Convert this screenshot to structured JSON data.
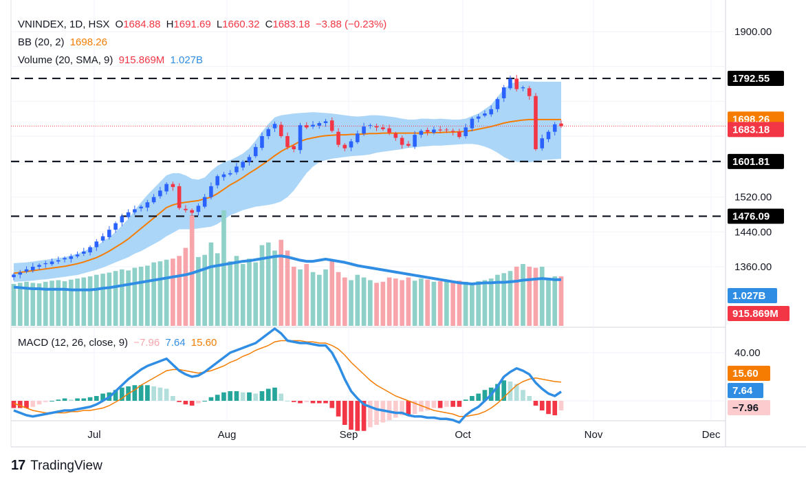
{
  "legend": {
    "symbol": "VNINDEX, 1D, HSX",
    "o_label": "O",
    "open": "1684.88",
    "h_label": "H",
    "high": "1691.69",
    "l_label": "L",
    "low": "1660.32",
    "c_label": "C",
    "close": "1683.18",
    "change": "−3.88 (−0.23%)",
    "bb_label": "BB (20, 2)",
    "bb_value": "1698.26",
    "vol_label": "Volume (20, SMA, 9)",
    "vol_value": "915.869M",
    "vol_sma": "1.027B",
    "macd_label": "MACD (12, 26, close, 9)",
    "macd_hist": "−7.96",
    "macd_line": "7.64",
    "macd_signal": "15.60"
  },
  "brand": "TradingView",
  "colors": {
    "up": "#2962ff",
    "down": "#f23645",
    "bb_fill": "#90c8f6",
    "bb_basis": "#f57c00",
    "vol_up": "#8fd1c9",
    "vol_down": "#f7a5ab",
    "vol_sma": "#2f8de4",
    "macd_line": "#2f8de4",
    "signal_line": "#f57c00",
    "hist_up_strong": "#26a69a",
    "hist_up_weak": "#b2dfdb",
    "hist_down_strong": "#f23645",
    "hist_down_weak": "#fccbcd"
  },
  "chart_data": {
    "type": "candlestick",
    "x_labels": [
      "Jul",
      "Aug",
      "Sep",
      "Oct",
      "Nov",
      "Dec"
    ],
    "price_axis": {
      "ticks": [
        "1900.00",
        "1520.00",
        "1440.00",
        "1360.00"
      ],
      "range": [
        1318,
        1940
      ]
    },
    "levels": [
      {
        "value": 1792.55,
        "label": "1792.55"
      },
      {
        "value": 1601.81,
        "label": "1601.81"
      },
      {
        "value": 1476.09,
        "label": "1476.09"
      }
    ],
    "price_badges": [
      {
        "label": "1698.26",
        "value": 1698.26,
        "role": "bb"
      },
      {
        "label": "1683.18",
        "value": 1683.18,
        "role": "close"
      }
    ],
    "volume_badges": [
      "1.027B",
      "915.869M"
    ],
    "macd_axis": {
      "ticks": [
        "40.00"
      ],
      "range": [
        -40,
        70
      ]
    },
    "macd_badges": [
      {
        "label": "15.60",
        "value": 15.6,
        "role": "signal"
      },
      {
        "label": "7.64",
        "value": 7.64,
        "role": "macd"
      },
      {
        "label": "−7.96",
        "value": -7.96,
        "role": "hist"
      }
    ],
    "close_series": [
      1342,
      1347,
      1354,
      1360,
      1364,
      1368,
      1372,
      1375,
      1380,
      1384,
      1388,
      1395,
      1405,
      1418,
      1430,
      1445,
      1460,
      1476,
      1485,
      1492,
      1498,
      1508,
      1520,
      1535,
      1550,
      1543,
      1495,
      1490,
      1484,
      1500,
      1520,
      1545,
      1568,
      1572,
      1575,
      1590,
      1601,
      1612,
      1635,
      1660,
      1676,
      1688,
      1660,
      1635,
      1630,
      1685,
      1680,
      1686,
      1690,
      1694,
      1672,
      1640,
      1632,
      1648,
      1666,
      1682,
      1685,
      1680,
      1676,
      1668,
      1656,
      1640,
      1638,
      1663,
      1672,
      1670,
      1675,
      1673,
      1674,
      1670,
      1658,
      1680,
      1700,
      1705,
      1712,
      1722,
      1745,
      1772,
      1792,
      1768,
      1772,
      1752,
      1630,
      1655,
      1670,
      1687,
      1683
    ],
    "bb_upper": [
      1368,
      1369,
      1370,
      1372,
      1374,
      1376,
      1378,
      1380,
      1382,
      1386,
      1390,
      1396,
      1402,
      1408,
      1418,
      1428,
      1440,
      1455,
      1470,
      1490,
      1508,
      1525,
      1540,
      1555,
      1570,
      1575,
      1575,
      1570,
      1562,
      1560,
      1565,
      1580,
      1592,
      1600,
      1605,
      1612,
      1620,
      1632,
      1650,
      1670,
      1688,
      1703,
      1708,
      1710,
      1712,
      1713,
      1714,
      1715,
      1714,
      1713,
      1712,
      1710,
      1708,
      1706,
      1705,
      1706,
      1708,
      1708,
      1707,
      1705,
      1703,
      1700,
      1698,
      1698,
      1700,
      1700,
      1699,
      1700,
      1699,
      1698,
      1698,
      1700,
      1706,
      1712,
      1722,
      1732,
      1750,
      1768,
      1780,
      1785,
      1786,
      1786,
      1785,
      1785,
      1785,
      1785,
      1785
    ],
    "bb_lower": [
      1325,
      1326,
      1327,
      1328,
      1330,
      1331,
      1333,
      1335,
      1337,
      1339,
      1341,
      1345,
      1349,
      1353,
      1358,
      1364,
      1370,
      1376,
      1382,
      1390,
      1396,
      1404,
      1412,
      1420,
      1430,
      1438,
      1446,
      1446,
      1446,
      1448,
      1450,
      1452,
      1458,
      1468,
      1478,
      1484,
      1490,
      1494,
      1498,
      1500,
      1502,
      1505,
      1510,
      1520,
      1535,
      1555,
      1575,
      1590,
      1600,
      1605,
      1608,
      1610,
      1612,
      1614,
      1615,
      1616,
      1618,
      1622,
      1624,
      1626,
      1628,
      1630,
      1633,
      1634,
      1636,
      1637,
      1638,
      1638,
      1639,
      1640,
      1641,
      1642,
      1642,
      1640,
      1636,
      1630,
      1622,
      1612,
      1605,
      1601,
      1600,
      1600,
      1602,
      1605,
      1606,
      1607,
      1608
    ],
    "bb_basis": [
      1345,
      1347,
      1349,
      1351,
      1353,
      1355,
      1357,
      1359,
      1361,
      1364,
      1367,
      1371,
      1376,
      1381,
      1388,
      1396,
      1405,
      1414,
      1424,
      1436,
      1448,
      1460,
      1472,
      1484,
      1496,
      1502,
      1506,
      1508,
      1510,
      1512,
      1516,
      1520,
      1528,
      1538,
      1548,
      1556,
      1565,
      1575,
      1584,
      1594,
      1604,
      1615,
      1625,
      1633,
      1640,
      1648,
      1653,
      1656,
      1659,
      1661,
      1662,
      1663,
      1663,
      1664,
      1664,
      1665,
      1666,
      1666,
      1667,
      1667,
      1667,
      1667,
      1667,
      1667,
      1667,
      1668,
      1668,
      1668,
      1669,
      1669,
      1670,
      1671,
      1673,
      1676,
      1679,
      1682,
      1686,
      1690,
      1693,
      1695,
      1697,
      1698,
      1698,
      1698,
      1698,
      1698,
      1698
    ],
    "volume_range": [
      0,
      2.3
    ],
    "volume": [
      0.78,
      0.8,
      0.82,
      0.8,
      0.79,
      0.82,
      0.84,
      0.85,
      0.83,
      0.86,
      0.88,
      0.9,
      0.92,
      0.95,
      0.97,
      0.99,
      1.02,
      1.05,
      1.03,
      1.08,
      1.1,
      1.12,
      1.18,
      1.2,
      1.23,
      1.25,
      1.3,
      1.45,
      2.05,
      1.28,
      1.32,
      1.55,
      1.35,
      2.15,
      1.2,
      1.3,
      1.15,
      1.25,
      1.18,
      1.5,
      1.55,
      1.4,
      1.6,
      1.4,
      1.1,
      1.05,
      1.15,
      1.0,
      0.95,
      1.05,
      1.2,
      1.0,
      0.9,
      0.85,
      0.95,
      0.9,
      0.85,
      0.8,
      0.82,
      0.9,
      0.88,
      0.85,
      0.9,
      0.84,
      0.88,
      0.86,
      0.82,
      0.83,
      0.85,
      0.82,
      0.84,
      0.82,
      0.8,
      0.83,
      0.85,
      0.88,
      0.95,
      0.98,
      1.02,
      1.1,
      1.15,
      1.1,
      1.08,
      1.1,
      0.86,
      0.92,
      0.92
    ],
    "volume_sma": [
      0.72,
      0.71,
      0.7,
      0.69,
      0.69,
      0.68,
      0.68,
      0.68,
      0.68,
      0.67,
      0.67,
      0.67,
      0.67,
      0.68,
      0.7,
      0.71,
      0.73,
      0.75,
      0.77,
      0.79,
      0.81,
      0.83,
      0.85,
      0.87,
      0.89,
      0.91,
      0.93,
      0.95,
      0.98,
      1.02,
      1.06,
      1.1,
      1.12,
      1.14,
      1.16,
      1.18,
      1.2,
      1.21,
      1.23,
      1.25,
      1.27,
      1.29,
      1.3,
      1.28,
      1.25,
      1.22,
      1.2,
      1.2,
      1.22,
      1.24,
      1.22,
      1.2,
      1.18,
      1.15,
      1.12,
      1.1,
      1.08,
      1.06,
      1.04,
      1.02,
      1.0,
      0.98,
      0.96,
      0.94,
      0.92,
      0.9,
      0.88,
      0.86,
      0.84,
      0.82,
      0.8,
      0.79,
      0.78,
      0.79,
      0.8,
      0.8,
      0.81,
      0.81,
      0.82,
      0.83,
      0.85,
      0.86,
      0.87,
      0.88,
      0.87,
      0.86,
      0.86
    ],
    "macd_line": [
      -8,
      -10,
      -12,
      -13,
      -12,
      -11,
      -10,
      -9,
      -8,
      -8,
      -7,
      -6,
      -5,
      -3,
      0,
      3,
      8,
      13,
      18,
      22,
      26,
      29,
      31,
      33,
      35,
      30,
      25,
      22,
      20,
      21,
      24,
      28,
      32,
      36,
      40,
      42,
      44,
      46,
      48,
      52,
      56,
      60,
      56,
      50,
      49,
      48,
      48,
      47,
      46,
      46,
      40,
      30,
      18,
      8,
      2,
      -3,
      -5,
      -7,
      -8,
      -9,
      -10,
      -10,
      -12,
      -13,
      -13,
      -14,
      -14,
      -15,
      -15,
      -16,
      -18,
      -12,
      -8,
      -5,
      0,
      5,
      12,
      20,
      24,
      27,
      25,
      22,
      15,
      10,
      6,
      4,
      7.64
    ],
    "macd_signal": [
      -2,
      -4,
      -6,
      -8,
      -9,
      -10,
      -10,
      -10,
      -10,
      -9,
      -9,
      -8,
      -8,
      -7,
      -6,
      -4,
      -1,
      2,
      6,
      9,
      13,
      16,
      19,
      22,
      25,
      26,
      26,
      25,
      24,
      23,
      24,
      25,
      27,
      29,
      32,
      34,
      37,
      39,
      42,
      44,
      46,
      49,
      50,
      50,
      50,
      50,
      49,
      49,
      48,
      48,
      46,
      43,
      38,
      32,
      27,
      22,
      17,
      13,
      10,
      7,
      4,
      2,
      0,
      -2,
      -4,
      -6,
      -8,
      -9,
      -10,
      -11,
      -13,
      -13,
      -12,
      -11,
      -9,
      -6,
      -2,
      3,
      8,
      13,
      16,
      18,
      19,
      18,
      17,
      16,
      15.6
    ],
    "macd_hist": [
      -6,
      -6,
      -6,
      -5,
      -3,
      -1,
      0,
      1,
      2,
      1,
      2,
      2,
      3,
      4,
      6,
      7,
      9,
      11,
      12,
      13,
      13,
      13,
      12,
      11,
      10,
      4,
      -1,
      -3,
      -4,
      -2,
      0,
      3,
      5,
      7,
      8,
      8,
      7,
      7,
      6,
      8,
      10,
      11,
      6,
      0,
      -1,
      -2,
      -1,
      -2,
      -2,
      -2,
      -6,
      -13,
      -20,
      -24,
      -25,
      -25,
      -22,
      -20,
      -18,
      -16,
      -14,
      -12,
      -12,
      -11,
      -9,
      -8,
      -6,
      -6,
      -5,
      -5,
      -5,
      1,
      4,
      6,
      9,
      11,
      14,
      17,
      16,
      14,
      9,
      4,
      -4,
      -8,
      -11,
      -12,
      -7.96
    ]
  }
}
